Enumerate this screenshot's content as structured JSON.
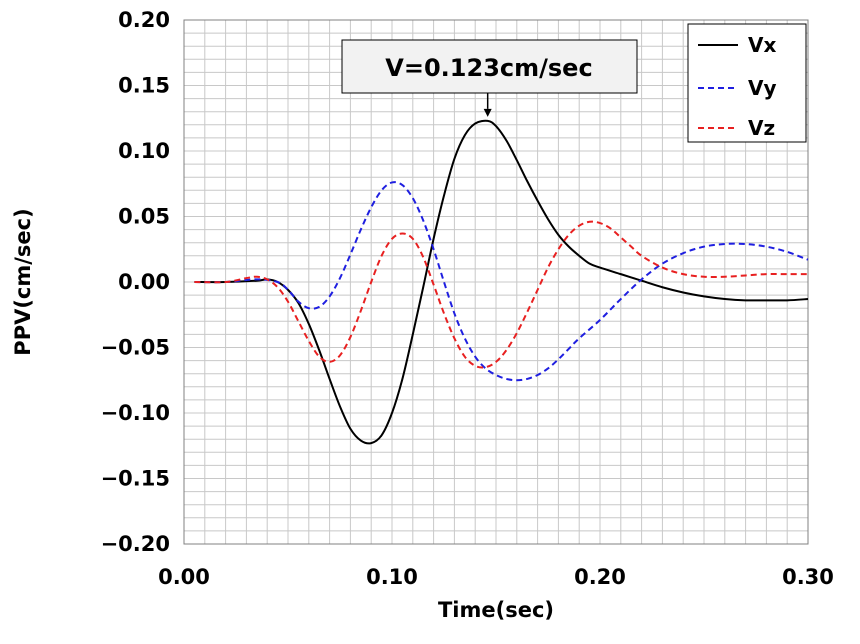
{
  "chart_data": {
    "type": "line",
    "title": "",
    "xlabel": "Time(sec)",
    "ylabel": "PPV(cm/sec)",
    "xlim": [
      0.0,
      0.3
    ],
    "ylim": [
      -0.2,
      0.2
    ],
    "x_ticks": [
      0.0,
      0.1,
      0.2,
      0.3
    ],
    "x_tick_labels": [
      "0.00",
      "0.10",
      "0.20",
      "0.30"
    ],
    "y_ticks": [
      0.2,
      0.15,
      0.1,
      0.05,
      0.0,
      -0.05,
      -0.1,
      -0.15,
      -0.2
    ],
    "y_tick_labels": [
      "0.20",
      "0.15",
      "0.10",
      "0.05",
      "0.00",
      "−0.05",
      "−0.10",
      "−0.15",
      "−0.20"
    ],
    "grid": true,
    "legend_position": "top-right",
    "colors": {
      "Vx": "#000000",
      "Vy": "#1f1fe0",
      "Vz": "#e82020",
      "grid": "#c8c8c8",
      "annotation_bg": "#f2f2f2"
    },
    "annotation": {
      "text": "V=0.123cm/sec",
      "target_x": 0.146,
      "target_y": 0.123
    },
    "series": [
      {
        "name": "Vx",
        "style": "solid",
        "x": [
          0.005,
          0.02,
          0.035,
          0.04,
          0.045,
          0.05,
          0.055,
          0.06,
          0.065,
          0.07,
          0.075,
          0.08,
          0.085,
          0.09,
          0.095,
          0.1,
          0.105,
          0.11,
          0.115,
          0.12,
          0.125,
          0.13,
          0.135,
          0.14,
          0.146,
          0.15,
          0.155,
          0.16,
          0.165,
          0.17,
          0.175,
          0.18,
          0.185,
          0.19,
          0.195,
          0.2,
          0.21,
          0.22,
          0.23,
          0.24,
          0.25,
          0.26,
          0.27,
          0.28,
          0.29,
          0.3
        ],
        "y": [
          0.0,
          0.0,
          0.001,
          0.002,
          0.0,
          -0.006,
          -0.016,
          -0.032,
          -0.052,
          -0.074,
          -0.095,
          -0.112,
          -0.121,
          -0.123,
          -0.117,
          -0.1,
          -0.074,
          -0.04,
          -0.004,
          0.033,
          0.066,
          0.094,
          0.112,
          0.121,
          0.123,
          0.119,
          0.108,
          0.093,
          0.077,
          0.062,
          0.048,
          0.036,
          0.027,
          0.02,
          0.014,
          0.011,
          0.006,
          0.001,
          -0.004,
          -0.008,
          -0.011,
          -0.013,
          -0.014,
          -0.014,
          -0.014,
          -0.013
        ]
      },
      {
        "name": "Vy",
        "style": "dashed",
        "x": [
          0.005,
          0.02,
          0.035,
          0.045,
          0.05,
          0.055,
          0.06,
          0.065,
          0.07,
          0.075,
          0.08,
          0.085,
          0.09,
          0.095,
          0.1,
          0.105,
          0.11,
          0.115,
          0.12,
          0.125,
          0.13,
          0.135,
          0.14,
          0.145,
          0.15,
          0.155,
          0.16,
          0.165,
          0.17,
          0.175,
          0.18,
          0.185,
          0.19,
          0.2,
          0.21,
          0.22,
          0.23,
          0.24,
          0.25,
          0.26,
          0.27,
          0.28,
          0.29,
          0.3
        ],
        "y": [
          0.0,
          0.0,
          0.002,
          0.0,
          -0.006,
          -0.015,
          -0.02,
          -0.019,
          -0.011,
          0.003,
          0.021,
          0.04,
          0.057,
          0.07,
          0.076,
          0.074,
          0.064,
          0.047,
          0.025,
          0.0,
          -0.024,
          -0.043,
          -0.057,
          -0.066,
          -0.071,
          -0.074,
          -0.075,
          -0.074,
          -0.071,
          -0.066,
          -0.059,
          -0.051,
          -0.043,
          -0.029,
          -0.013,
          0.002,
          0.014,
          0.022,
          0.027,
          0.029,
          0.029,
          0.027,
          0.023,
          0.017
        ]
      },
      {
        "name": "Vz",
        "style": "dashed",
        "x": [
          0.005,
          0.02,
          0.03,
          0.035,
          0.04,
          0.045,
          0.05,
          0.055,
          0.06,
          0.065,
          0.07,
          0.075,
          0.08,
          0.085,
          0.09,
          0.095,
          0.1,
          0.105,
          0.11,
          0.115,
          0.12,
          0.125,
          0.13,
          0.135,
          0.14,
          0.145,
          0.15,
          0.155,
          0.16,
          0.165,
          0.17,
          0.175,
          0.18,
          0.185,
          0.19,
          0.195,
          0.2,
          0.205,
          0.21,
          0.215,
          0.22,
          0.23,
          0.24,
          0.25,
          0.26,
          0.27,
          0.28,
          0.29,
          0.3
        ],
        "y": [
          0.0,
          0.0,
          0.003,
          0.004,
          0.002,
          -0.004,
          -0.015,
          -0.03,
          -0.045,
          -0.057,
          -0.061,
          -0.056,
          -0.042,
          -0.022,
          0.0,
          0.02,
          0.033,
          0.037,
          0.033,
          0.019,
          -0.002,
          -0.024,
          -0.043,
          -0.057,
          -0.064,
          -0.065,
          -0.061,
          -0.052,
          -0.039,
          -0.023,
          -0.006,
          0.011,
          0.025,
          0.036,
          0.043,
          0.046,
          0.045,
          0.041,
          0.034,
          0.027,
          0.02,
          0.011,
          0.006,
          0.004,
          0.004,
          0.005,
          0.006,
          0.006,
          0.006
        ]
      }
    ]
  }
}
